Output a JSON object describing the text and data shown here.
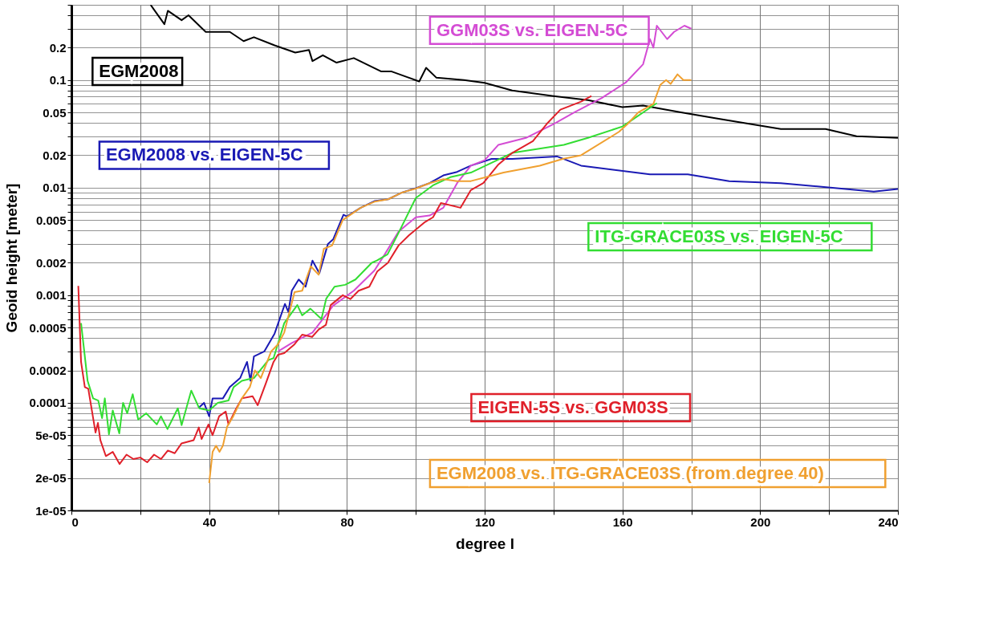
{
  "chart_data": {
    "type": "line",
    "xlabel": "degree l",
    "ylabel": "Geoid height [meter]",
    "xlim": [
      0,
      240
    ],
    "xticks": [
      0,
      {
        "value": 20,
        "label": null
      },
      40,
      {
        "value": 60,
        "label": null
      },
      80,
      {
        "value": 100,
        "label": null
      },
      120,
      {
        "value": 140,
        "label": null
      },
      160,
      {
        "value": 180,
        "label": null
      },
      200,
      {
        "value": 220,
        "label": null
      },
      240
    ],
    "ylim": [
      1e-05,
      0.5
    ],
    "log": "y",
    "yticks": [
      1e-05,
      2e-05,
      {
        "value": 3e-05,
        "label": null
      },
      {
        "value": 4e-05,
        "label": null
      },
      5e-05,
      {
        "value": 6e-05,
        "label": null
      },
      {
        "value": 7e-05,
        "label": null
      },
      {
        "value": 8e-05,
        "label": null
      },
      {
        "value": 9e-05,
        "label": null
      },
      0.0001,
      0.0002,
      {
        "value": 0.0003,
        "label": null
      },
      {
        "value": 0.0004,
        "label": null
      },
      0.0005,
      {
        "value": 0.0006,
        "label": null
      },
      {
        "value": 0.0007,
        "label": null
      },
      {
        "value": 0.0008,
        "label": null
      },
      {
        "value": 0.0009,
        "label": null
      },
      0.001,
      0.002,
      {
        "value": 0.003,
        "label": null
      },
      {
        "value": 0.004,
        "label": null
      },
      0.005,
      {
        "value": 0.006,
        "label": null
      },
      {
        "value": 0.007,
        "label": null
      },
      {
        "value": 0.008,
        "label": null
      },
      {
        "value": 0.009,
        "label": null
      },
      0.01,
      0.02,
      {
        "value": 0.03,
        "label": null
      },
      {
        "value": 0.04,
        "label": null
      },
      0.05,
      {
        "value": 0.06,
        "label": null
      },
      {
        "value": 0.07,
        "label": null
      },
      {
        "value": 0.08,
        "label": null
      },
      {
        "value": 0.09,
        "label": null
      },
      0.1,
      0.2,
      {
        "value": 0.3,
        "label": null
      },
      {
        "value": 0.4,
        "label": null
      },
      {
        "value": 0.5,
        "label": null
      }
    ],
    "grid": true,
    "legend": false,
    "marker": "none",
    "line_style": "solid",
    "series": [
      {
        "name": "EGM2008",
        "color": "#000000",
        "x": [
          23,
          24,
          27,
          28,
          32,
          34,
          39,
          46,
          50,
          53,
          59,
          65,
          69,
          70,
          73,
          77,
          82,
          90,
          93,
          101,
          103,
          106,
          114,
          120,
          128,
          140,
          150,
          160,
          166,
          177,
          189,
          206,
          219,
          228,
          240
        ],
        "values": [
          0.5,
          0.45,
          0.33,
          0.44,
          0.36,
          0.4,
          0.28,
          0.28,
          0.23,
          0.25,
          0.21,
          0.18,
          0.19,
          0.15,
          0.17,
          0.145,
          0.16,
          0.12,
          0.12,
          0.097,
          0.13,
          0.105,
          0.1,
          0.094,
          0.08,
          0.071,
          0.065,
          0.056,
          0.058,
          0.05,
          0.043,
          0.035,
          0.035,
          0.03,
          0.029
        ]
      },
      {
        "name": "EGM2008 vs. EIGEN-5C",
        "color": "#1a1ab4",
        "x": [
          37,
          38.5,
          40,
          41,
          44,
          46,
          49,
          51,
          52,
          53,
          56,
          59,
          62,
          63,
          64,
          66,
          68,
          70,
          72,
          74.5,
          76,
          79,
          80,
          84,
          88,
          92,
          96,
          100,
          104,
          108,
          112,
          116,
          122,
          128,
          141,
          148,
          168,
          179,
          191,
          206,
          233,
          240
        ],
        "values": [
          9e-05,
          0.0001,
          7.5e-05,
          0.00011,
          0.00011,
          0.00014,
          0.00017,
          0.00024,
          0.00016,
          0.00027,
          0.0003,
          0.00044,
          0.00083,
          0.0007,
          0.0011,
          0.0014,
          0.0012,
          0.0021,
          0.0016,
          0.003,
          0.0033,
          0.0056,
          0.0054,
          0.0065,
          0.0075,
          0.0078,
          0.009,
          0.0099,
          0.011,
          0.013,
          0.014,
          0.016,
          0.0185,
          0.0185,
          0.0195,
          0.016,
          0.0133,
          0.0133,
          0.0115,
          0.011,
          0.0092,
          0.0097
        ]
      },
      {
        "name": "GGM03S vs. EIGEN-5C",
        "color": "#d44cd4",
        "x": [
          60,
          64,
          70,
          76,
          82,
          88,
          91,
          95,
          100,
          104,
          108,
          112,
          116,
          120,
          124,
          132,
          140,
          146,
          154,
          161,
          166,
          168,
          169,
          170,
          173,
          175,
          178,
          180
        ],
        "values": [
          0.0003,
          0.00036,
          0.00045,
          0.0008,
          0.0011,
          0.0017,
          0.0024,
          0.0039,
          0.0053,
          0.0055,
          0.0065,
          0.011,
          0.016,
          0.018,
          0.025,
          0.029,
          0.039,
          0.05,
          0.068,
          0.095,
          0.14,
          0.24,
          0.2,
          0.32,
          0.24,
          0.28,
          0.32,
          0.3
        ]
      },
      {
        "name": "ITG-GRACE03S vs. EIGEN-5C",
        "color": "#33dd33",
        "x": [
          2.8,
          4.7,
          6.3,
          7.8,
          8.9,
          9.7,
          10.9,
          12,
          13.9,
          15,
          16.2,
          17.8,
          19.4,
          21.7,
          24.8,
          26,
          27.9,
          30.9,
          32,
          34.8,
          37.1,
          40,
          42.5,
          45.6,
          47.1,
          49.5,
          53,
          57.2,
          58.7,
          61.8,
          65.6,
          67,
          69.4,
          72.6,
          74,
          76.4,
          79.5,
          82.5,
          87.2,
          88.7,
          91.8,
          95,
          100,
          105,
          110,
          116,
          128,
          143,
          150,
          160,
          170
        ],
        "values": [
          0.00055,
          0.00016,
          0.00011,
          0.000105,
          7.2e-05,
          0.00011,
          5.1e-05,
          8.5e-05,
          5.2e-05,
          0.0001,
          8e-05,
          0.00012,
          7e-05,
          8e-05,
          6.3e-05,
          7.5e-05,
          5.7e-05,
          8.9e-05,
          6.2e-05,
          0.00013,
          8.9e-05,
          8.5e-05,
          0.0001,
          0.000105,
          0.00014,
          0.00016,
          0.00017,
          0.00025,
          0.00026,
          0.00055,
          0.00081,
          0.00065,
          0.00075,
          0.0006,
          0.00093,
          0.0012,
          0.00125,
          0.0014,
          0.002,
          0.0021,
          0.0024,
          0.0038,
          0.008,
          0.0105,
          0.0125,
          0.0138,
          0.021,
          0.025,
          0.029,
          0.037,
          0.061
        ]
      },
      {
        "name": "EIGEN-5S vs. GGM03S",
        "color": "#e0202a",
        "x": [
          2,
          2.8,
          3.9,
          4.9,
          7,
          7.7,
          8.4,
          10,
          12,
          14,
          16,
          18,
          20,
          22,
          24,
          26,
          28,
          30,
          32,
          35.5,
          37,
          37.8,
          39.8,
          41,
          42.9,
          44.8,
          45.6,
          47.9,
          49.5,
          52.6,
          54.1,
          56.4,
          58.7,
          60,
          61.8,
          64.8,
          67,
          69.9,
          71.8,
          73.9,
          75.3,
          78.8,
          81,
          83.4,
          86.5,
          88.8,
          91.9,
          95,
          98,
          102.7,
          105,
          107.3,
          113,
          116,
          119.6,
          124,
          128,
          134,
          138,
          142,
          148,
          151
        ],
        "values": [
          0.00122,
          0.00024,
          0.00014,
          0.000135,
          5.3e-05,
          6.5e-05,
          4.5e-05,
          3.2e-05,
          3.5e-05,
          2.7e-05,
          3.3e-05,
          3e-05,
          3.1e-05,
          2.8e-05,
          3.3e-05,
          3e-05,
          3.6e-05,
          3.4e-05,
          4.2e-05,
          4.5e-05,
          5.9e-05,
          4.6e-05,
          6.3e-05,
          5e-05,
          7.5e-05,
          8.3e-05,
          6.3e-05,
          8.9e-05,
          0.00011,
          0.000115,
          9.5e-05,
          0.00015,
          0.00024,
          0.00028,
          0.00029,
          0.00035,
          0.00043,
          0.00041,
          0.00048,
          0.00053,
          0.00081,
          0.001,
          0.00092,
          0.0011,
          0.0012,
          0.00166,
          0.002,
          0.0029,
          0.0036,
          0.0048,
          0.0053,
          0.0072,
          0.0065,
          0.0095,
          0.011,
          0.0164,
          0.021,
          0.027,
          0.039,
          0.053,
          0.063,
          0.071
        ]
      },
      {
        "name": "EGM2008 vs. ITG-GRACE03S (from degree 40)",
        "color": "#f0a030",
        "x": [
          40,
          41,
          42,
          43,
          44,
          45.2,
          47,
          49.5,
          51.8,
          53.3,
          55,
          58,
          60,
          61.8,
          64.8,
          67,
          69.5,
          71.8,
          73.3,
          75.7,
          78.8,
          84,
          88,
          92,
          96,
          100,
          104,
          108,
          112,
          116,
          125.5,
          136,
          142.7,
          148,
          159,
          161.5,
          164.6,
          169,
          171,
          172.7,
          174,
          176,
          177.7,
          180
        ],
        "values": [
          1.8e-05,
          3.5e-05,
          4e-05,
          3.5e-05,
          4e-05,
          6e-05,
          7.5e-05,
          0.00011,
          0.00014,
          0.0002,
          0.00017,
          0.0003,
          0.00035,
          0.00045,
          0.00107,
          0.0011,
          0.00186,
          0.00155,
          0.0027,
          0.0029,
          0.005,
          0.0065,
          0.0074,
          0.0078,
          0.009,
          0.0098,
          0.011,
          0.012,
          0.0115,
          0.0115,
          0.0138,
          0.016,
          0.0185,
          0.02,
          0.033,
          0.039,
          0.05,
          0.06,
          0.09,
          0.1,
          0.092,
          0.113,
          0.1,
          0.1
        ]
      }
    ]
  }
}
